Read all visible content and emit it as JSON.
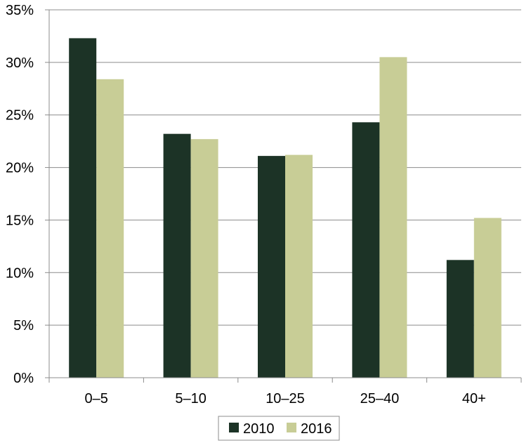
{
  "chart_data": {
    "type": "bar",
    "categories": [
      "0–5",
      "5–10",
      "10–25",
      "25–40",
      "40+"
    ],
    "series": [
      {
        "name": "2010",
        "color": "#1c3326",
        "values": [
          32.3,
          23.2,
          21.1,
          24.3,
          11.2
        ]
      },
      {
        "name": "2016",
        "color": "#c8cd96",
        "values": [
          28.4,
          22.7,
          21.2,
          30.5,
          15.2
        ]
      }
    ],
    "ylim": [
      0,
      35
    ],
    "yticks": [
      0,
      5,
      10,
      15,
      20,
      25,
      30,
      35
    ],
    "ytick_labels": [
      "0%",
      "5%",
      "10%",
      "15%",
      "20%",
      "25%",
      "30%",
      "35%"
    ],
    "grid": true,
    "legend_position": "bottom-center"
  }
}
